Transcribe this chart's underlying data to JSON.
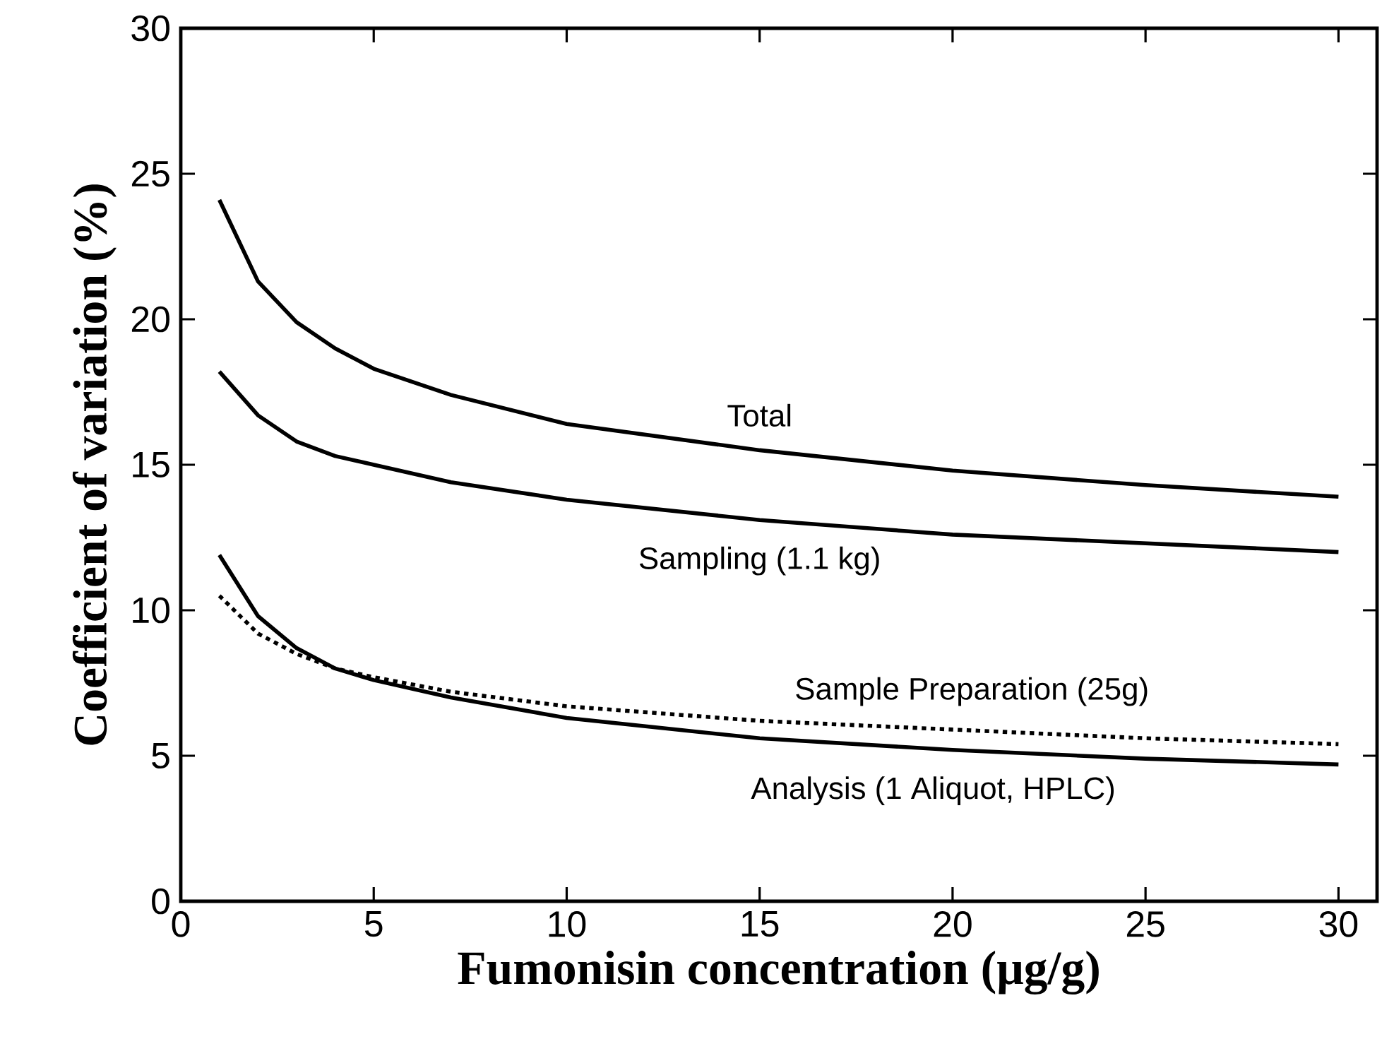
{
  "chart_data": {
    "type": "line",
    "xlabel": "Fumonisin concentration (μg/g)",
    "ylabel": "Coefficient of variation (%)",
    "xlim": [
      0,
      31
    ],
    "ylim": [
      0,
      30
    ],
    "xticks": [
      0,
      5,
      10,
      15,
      20,
      25,
      30
    ],
    "yticks": [
      0,
      5,
      10,
      15,
      20,
      25,
      30
    ],
    "grid": false,
    "legend": false,
    "marker": "none",
    "x": [
      1,
      2,
      3,
      4,
      5,
      7,
      10,
      15,
      20,
      25,
      30
    ],
    "series": [
      {
        "name": "Total",
        "color": "#000000",
        "line_style": "solid",
        "values": [
          24.1,
          21.3,
          19.9,
          19.0,
          18.3,
          17.4,
          16.4,
          15.5,
          14.8,
          14.3,
          13.9
        ]
      },
      {
        "name": "Sampling (1.1 kg)",
        "color": "#000000",
        "line_style": "solid",
        "values": [
          18.2,
          16.7,
          15.8,
          15.3,
          15.0,
          14.4,
          13.8,
          13.1,
          12.6,
          12.3,
          12.0
        ]
      },
      {
        "name": "Sample Preparation (25g)",
        "color": "#000000",
        "line_style": "dotted",
        "values": [
          10.5,
          9.2,
          8.5,
          8.0,
          7.7,
          7.2,
          6.7,
          6.2,
          5.9,
          5.6,
          5.4
        ]
      },
      {
        "name": "Analysis (1 Aliquot, HPLC)",
        "color": "#000000",
        "line_style": "solid",
        "values": [
          11.9,
          9.8,
          8.7,
          8.0,
          7.6,
          7.0,
          6.3,
          5.6,
          5.2,
          4.9,
          4.7
        ]
      }
    ]
  }
}
